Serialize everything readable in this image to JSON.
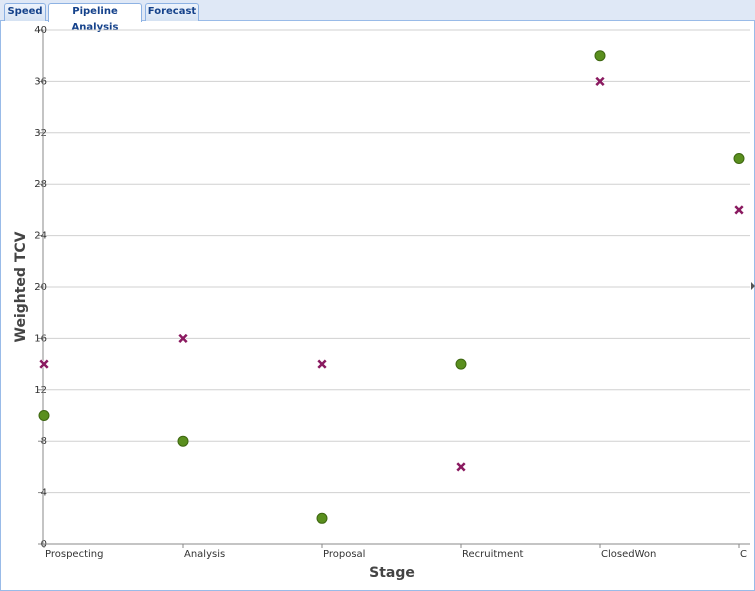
{
  "tabs": [
    "Speed",
    "Pipeline Analysis",
    "Forecast"
  ],
  "active_tab": 1,
  "chart_data": {
    "type": "scatter",
    "x_label": "Stage",
    "y_label": "Weighted TCV",
    "categories": [
      "Prospecting",
      "Analysis",
      "Proposal",
      "Recruitment",
      "ClosedWon",
      "C"
    ],
    "series": [
      {
        "color": "#5a8f1e",
        "marker": "circle",
        "values": [
          10,
          8,
          2,
          14,
          38,
          30
        ]
      },
      {
        "color": "#8a1a60",
        "marker": "cross",
        "values": [
          14,
          16,
          14,
          6,
          36,
          26
        ]
      }
    ],
    "ylim": [
      0,
      40
    ],
    "yticks": [
      0,
      4,
      8,
      12,
      16,
      20,
      24,
      28,
      32,
      36,
      40
    ],
    "grid": true
  }
}
